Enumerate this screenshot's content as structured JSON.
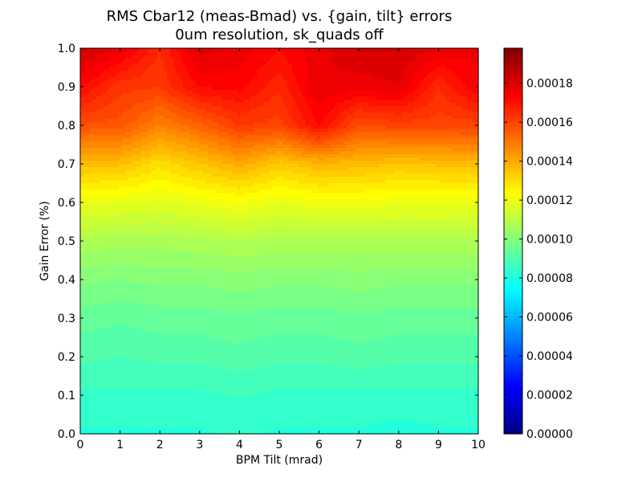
{
  "chart_data": {
    "type": "heatmap",
    "title": "RMS Cbar12 (meas-Bmad) vs. {gain, tilt} errors",
    "subtitle": "0um resolution, sk_quads off",
    "xlabel": "BPM Tilt (mrad)",
    "ylabel": "Gain Error (%)",
    "xlim": [
      0,
      10
    ],
    "ylim": [
      0,
      1.0
    ],
    "x": [
      0,
      1,
      2,
      3,
      4,
      5,
      6,
      7,
      8,
      9,
      10
    ],
    "y": [
      0.0,
      0.1,
      0.2,
      0.3,
      0.4,
      0.5,
      0.6,
      0.7,
      0.8,
      0.9,
      1.0
    ],
    "x_ticks": [
      "0",
      "1",
      "2",
      "3",
      "4",
      "5",
      "6",
      "7",
      "8",
      "9",
      "10"
    ],
    "y_ticks": [
      "0.0",
      "0.1",
      "0.2",
      "0.3",
      "0.4",
      "0.5",
      "0.6",
      "0.7",
      "0.8",
      "0.9",
      "1.0"
    ],
    "z": [
      [
        8.2e-05,
        8.2e-05,
        8.2e-05,
        8.2e-05,
        8.3e-05,
        8.2e-05,
        8.2e-05,
        8.2e-05,
        8.1e-05,
        8.2e-05,
        8.2e-05
      ],
      [
        8.5e-05,
        8.5e-05,
        8.5e-05,
        8.5e-05,
        8.6e-05,
        8.5e-05,
        8.5e-05,
        8.5e-05,
        8.5e-05,
        8.5e-05,
        8.5e-05
      ],
      [
        9e-05,
        8.9e-05,
        9e-05,
        9e-05,
        9.1e-05,
        9e-05,
        9e-05,
        9.1e-05,
        9e-05,
        9e-05,
        9e-05
      ],
      [
        9.4e-05,
        9.3e-05,
        9.4e-05,
        9.4e-05,
        9.5e-05,
        9.4e-05,
        9.4e-05,
        9.5e-05,
        9.4e-05,
        9.4e-05,
        9.4e-05
      ],
      [
        0.0001,
        9.9e-05,
        0.0001,
        0.0001,
        0.000101,
        0.0001,
        0.0001,
        0.000101,
        0.0001,
        0.0001,
        0.0001
      ],
      [
        0.000108,
        0.000107,
        0.000107,
        0.000108,
        0.000109,
        0.000108,
        0.000108,
        0.000108,
        0.000108,
        0.000108,
        0.000108
      ],
      [
        0.00012,
        0.000119,
        0.000118,
        0.00012,
        0.000122,
        0.000119,
        0.000121,
        0.000121,
        0.00012,
        0.00012,
        0.00012
      ],
      [
        0.000137,
        0.000136,
        0.00013,
        0.000135,
        0.00014,
        0.000134,
        0.000138,
        0.000137,
        0.000135,
        0.000136,
        0.000137
      ],
      [
        0.000158,
        0.000157,
        0.000148,
        0.000154,
        0.000162,
        0.00016,
        0.000172,
        0.000158,
        0.00016,
        0.00016,
        0.00016
      ],
      [
        0.000172,
        0.000163,
        0.000162,
        0.000172,
        0.000173,
        0.000166,
        0.000178,
        0.000176,
        0.000178,
        0.000165,
        0.000175
      ],
      [
        0.000183,
        0.000177,
        0.000165,
        0.00018,
        0.000177,
        0.000172,
        0.000177,
        0.000182,
        0.000182,
        0.000178,
        0.000175
      ]
    ],
    "colormap": "jet",
    "colorbar_range": [
      0.0,
      0.000198
    ],
    "colorbar_ticks": [
      "0.00000",
      "0.00002",
      "0.00004",
      "0.00006",
      "0.00008",
      "0.00010",
      "0.00012",
      "0.00014",
      "0.00016",
      "0.00018"
    ],
    "grid": false
  }
}
